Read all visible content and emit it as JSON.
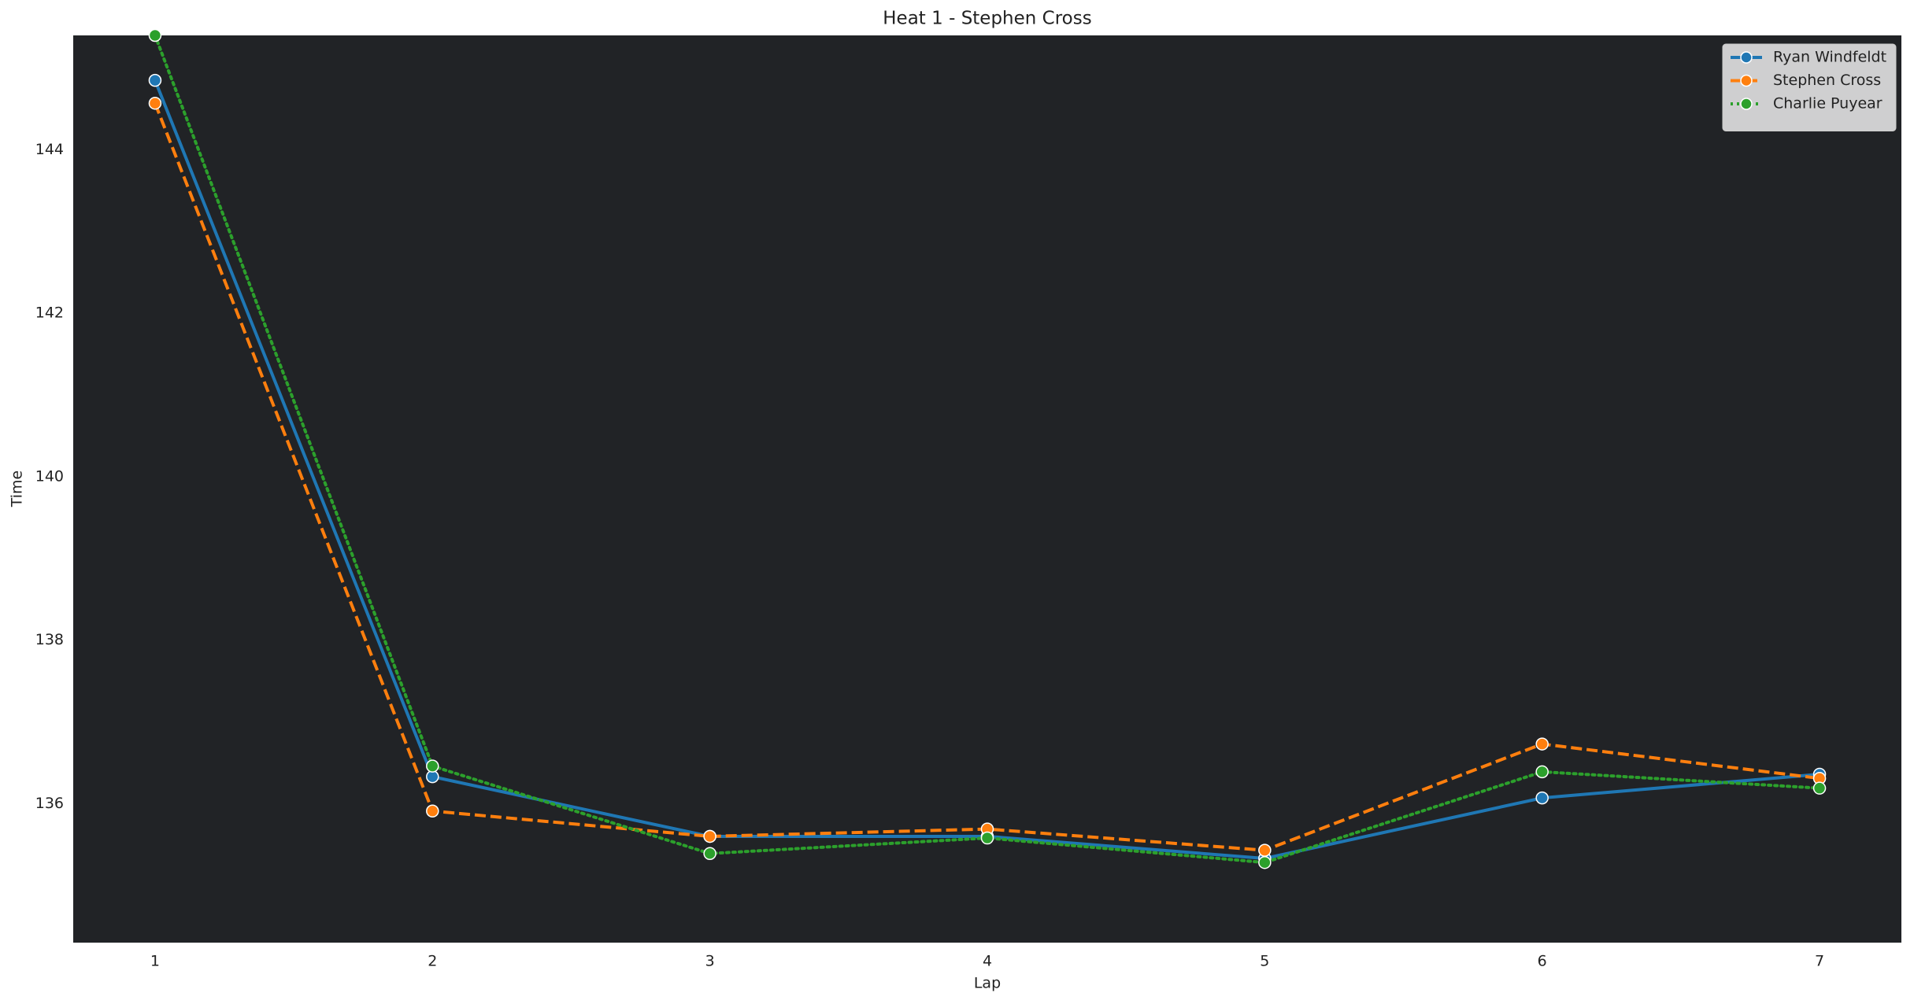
{
  "chart_data": {
    "type": "line",
    "title": "Heat 1 - Stephen Cross",
    "x_label": "Lap",
    "y_label": "Time",
    "x": [
      1,
      2,
      3,
      4,
      5,
      6,
      7
    ],
    "series": [
      {
        "name": "Ryan Windfeldt",
        "color": "#1f77b4",
        "linestyle": "solid",
        "values": [
          144.85,
          136.33,
          135.6,
          135.6,
          135.33,
          136.07,
          136.36
        ]
      },
      {
        "name": "Stephen Cross",
        "color": "#ff7f0e",
        "linestyle": "dashed",
        "values": [
          144.57,
          135.91,
          135.6,
          135.69,
          135.43,
          136.73,
          136.31
        ]
      },
      {
        "name": "Charlie Puyear",
        "color": "#2ca02c",
        "linestyle": "dotted",
        "values": [
          145.4,
          136.46,
          135.39,
          135.58,
          135.28,
          136.39,
          136.19
        ]
      }
    ],
    "xlim": [
      0.705,
      7.295
    ],
    "xticks": [
      1,
      2,
      3,
      4,
      5,
      6,
      7
    ],
    "ylim": [
      134.3,
      145.4
    ],
    "yticks": [
      136,
      138,
      140,
      142,
      144
    ],
    "grid": false,
    "legend": "upper right",
    "plot_background": "#212326"
  }
}
